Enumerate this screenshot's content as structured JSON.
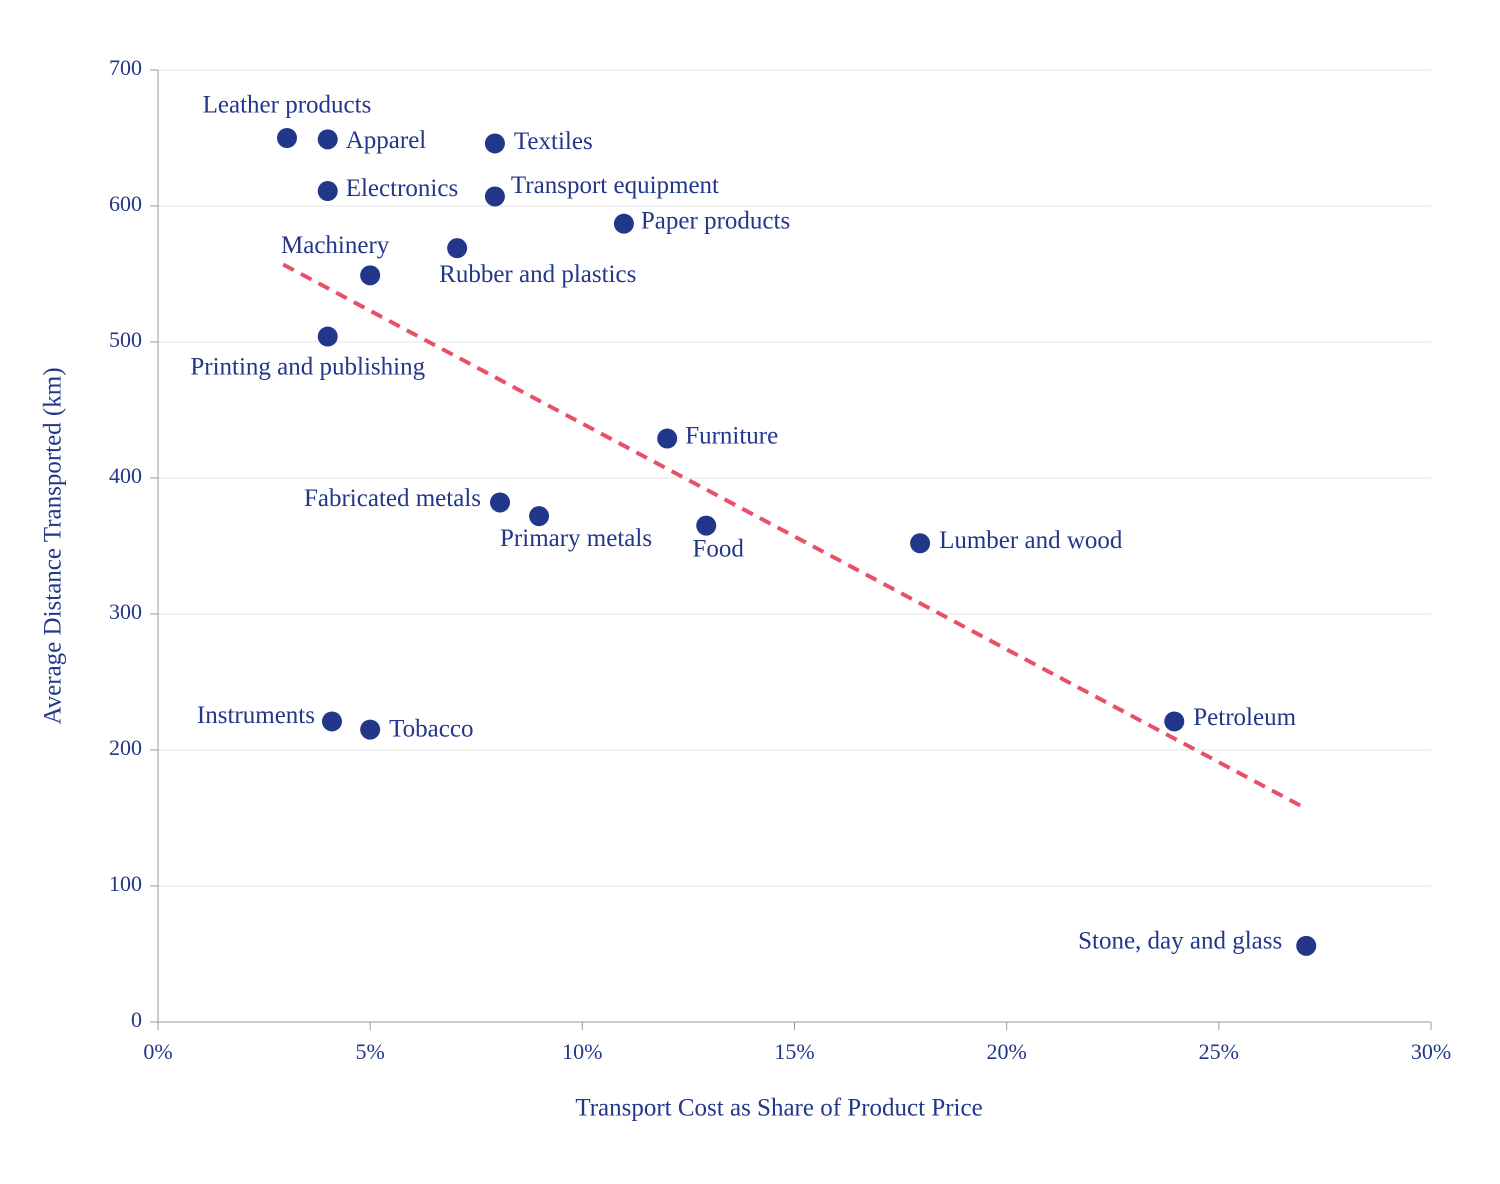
{
  "chart_data": {
    "type": "scatter",
    "xlabel": "Transport Cost as Share of Product Price",
    "ylabel": "Average Distance Transported (km)",
    "xlim": [
      0,
      30
    ],
    "ylim": [
      0,
      700
    ],
    "xticks": [
      {
        "value": 0,
        "label": "0%"
      },
      {
        "value": 5,
        "label": "5%"
      },
      {
        "value": 10,
        "label": "10%"
      },
      {
        "value": 15,
        "label": "15%"
      },
      {
        "value": 20,
        "label": "20%"
      },
      {
        "value": 25,
        "label": "25%"
      },
      {
        "value": 30,
        "label": "30%"
      }
    ],
    "yticks": [
      0,
      100,
      200,
      300,
      400,
      500,
      600,
      700
    ],
    "grid": true,
    "series": [
      {
        "color": "#22368a",
        "labels": [
          "Leather products",
          "Apparel",
          "Textiles",
          "Electronics",
          "Transport equipment",
          "Paper products",
          "Rubber and plastics",
          "Machinery",
          "Printing and publishing",
          "Furniture",
          "Fabricated metals",
          "Primary metals",
          "Food",
          "Lumber and wood",
          "Petroleum",
          "Instruments",
          "Tobacco",
          "Stone, day and glass"
        ],
        "x": [
          3.04,
          4.0,
          7.94,
          4.0,
          7.94,
          10.98,
          7.05,
          5.0,
          4.0,
          12.0,
          8.06,
          8.98,
          12.92,
          17.96,
          23.95,
          4.1,
          5.0,
          27.06
        ],
        "values": [
          650,
          649,
          646,
          611,
          607,
          587,
          569,
          549,
          504,
          429,
          382,
          372,
          365,
          352,
          221,
          221,
          215,
          56
        ]
      }
    ],
    "trendline": {
      "color": "#e8506a",
      "x": [
        2.95,
        26.99
      ],
      "values": [
        557,
        158
      ]
    }
  }
}
